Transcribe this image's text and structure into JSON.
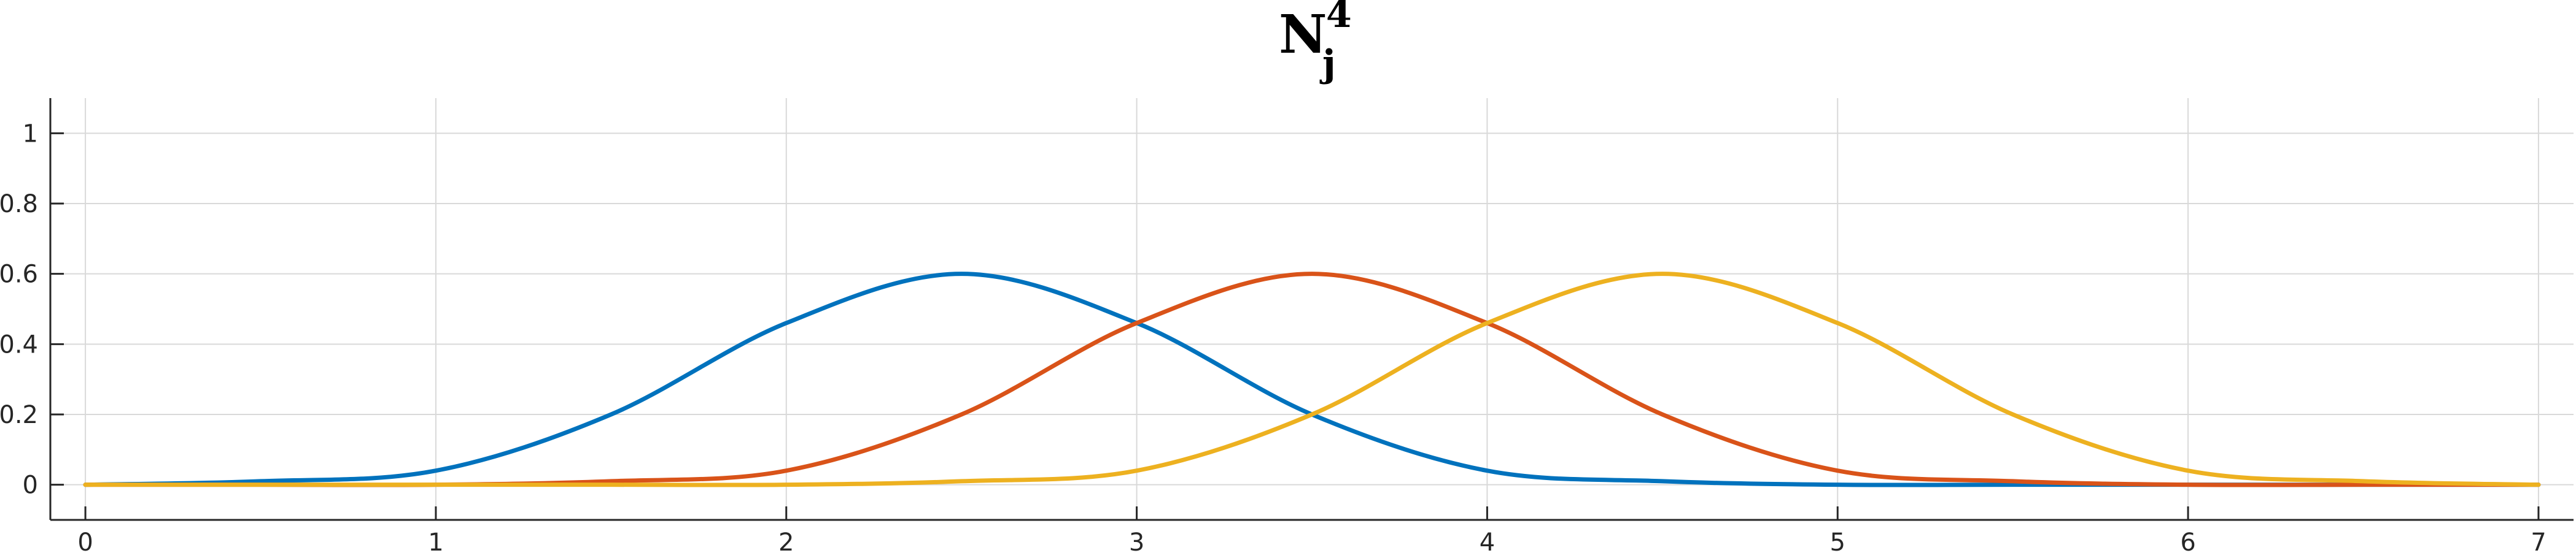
{
  "chart_data": {
    "type": "line",
    "title": {
      "base": "N",
      "superscript": "4",
      "subscript": "j"
    },
    "xlabel": "",
    "ylabel": "",
    "xlim": [
      -0.1,
      7.1
    ],
    "ylim": [
      -0.1,
      1.1
    ],
    "xticks": [
      0,
      1,
      2,
      3,
      4,
      5,
      6,
      7
    ],
    "xtick_labels": [
      "0",
      "1",
      "2",
      "3",
      "4",
      "5",
      "6",
      "7"
    ],
    "yticks": [
      0,
      0.2,
      0.4,
      0.6,
      0.8,
      1
    ],
    "ytick_labels": [
      "0",
      "0.2",
      "0.4",
      "0.6",
      "0.8",
      "1"
    ],
    "grid": true,
    "series": [
      {
        "color": "#0072BD",
        "x": [
          0,
          0.5,
          1,
          1.5,
          2,
          2.5,
          3,
          3.5,
          4,
          4.5,
          5,
          5.5,
          6,
          6.5,
          7
        ],
        "y": [
          0,
          0.01,
          0.04,
          0.2,
          0.46,
          0.6,
          0.46,
          0.2,
          0.04,
          0.01,
          0,
          0,
          0,
          0,
          0
        ]
      },
      {
        "color": "#D95319",
        "x": [
          0,
          0.5,
          1,
          1.5,
          2,
          2.5,
          3,
          3.5,
          4,
          4.5,
          5,
          5.5,
          6,
          6.5,
          7
        ],
        "y": [
          0,
          0,
          0,
          0.01,
          0.04,
          0.2,
          0.46,
          0.6,
          0.46,
          0.2,
          0.04,
          0.01,
          0,
          0,
          0
        ]
      },
      {
        "color": "#EDB120",
        "x": [
          0,
          0.5,
          1,
          1.5,
          2,
          2.5,
          3,
          3.5,
          4,
          4.5,
          5,
          5.5,
          6,
          6.5,
          7
        ],
        "y": [
          0,
          0,
          0,
          0,
          0,
          0.01,
          0.04,
          0.2,
          0.46,
          0.6,
          0.46,
          0.2,
          0.04,
          0.01,
          0
        ]
      }
    ]
  }
}
